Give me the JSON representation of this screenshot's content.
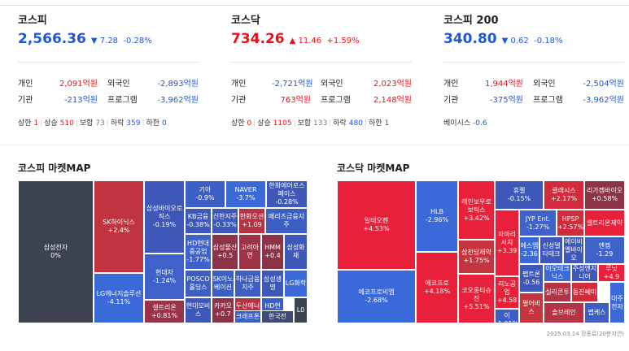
{
  "indices": [
    {
      "name": "코스피",
      "value": "2,566.36",
      "arrow": "▼",
      "change": "7.28",
      "rate": "-0.28%",
      "dir": "dn",
      "rows": [
        {
          "l1": "개인",
          "v1": "2,091억원",
          "c1": "up",
          "l2": "외국인",
          "v2": "-2,893억원",
          "c2": "dn"
        },
        {
          "l1": "기관",
          "v1": "-213억원",
          "c1": "dn",
          "l2": "프로그램",
          "v2": "-3,962억원",
          "c2": "dn"
        }
      ],
      "stats": [
        {
          "label": "상한",
          "value": "1",
          "c": "up"
        },
        {
          "label": "상승",
          "value": "510",
          "c": "up"
        },
        {
          "label": "보합",
          "value": "73",
          "c": "gray"
        },
        {
          "label": "하락",
          "value": "359",
          "c": "dn"
        },
        {
          "label": "하한",
          "value": "0",
          "c": "dn"
        }
      ]
    },
    {
      "name": "코스닥",
      "value": "734.26",
      "arrow": "▲",
      "change": "11.46",
      "rate": "+1.59%",
      "dir": "up",
      "rows": [
        {
          "l1": "개인",
          "v1": "-2,721억원",
          "c1": "dn",
          "l2": "외국인",
          "v2": "2,023억원",
          "c2": "up"
        },
        {
          "l1": "기관",
          "v1": "763억원",
          "c1": "up",
          "l2": "프로그램",
          "v2": "2,148억원",
          "c2": "up"
        }
      ],
      "stats": [
        {
          "label": "상한",
          "value": "0",
          "c": "up"
        },
        {
          "label": "상승",
          "value": "1105",
          "c": "up"
        },
        {
          "label": "보합",
          "value": "133",
          "c": "gray"
        },
        {
          "label": "하락",
          "value": "480",
          "c": "dn"
        },
        {
          "label": "하한",
          "value": "1",
          "c": "dn"
        }
      ]
    },
    {
      "name": "코스피 200",
      "value": "340.80",
      "arrow": "▼",
      "change": "0.62",
      "rate": "-0.18%",
      "dir": "dn",
      "rows": [
        {
          "l1": "개인",
          "v1": "1,944억원",
          "c1": "up",
          "l2": "외국인",
          "v2": "-2,504억원",
          "c2": "dn"
        },
        {
          "l1": "기관",
          "v1": "-375억원",
          "c1": "dn",
          "l2": "프로그램",
          "v2": "-3,962억원",
          "c2": "dn"
        }
      ],
      "basis": {
        "label": "베이시스",
        "value": "-0.6",
        "c": "dn"
      }
    }
  ],
  "kospi_map": {
    "title": "코스피 마켓MAP",
    "tiles": [
      {
        "name": "삼성전자",
        "rate": "0%",
        "color": "#3c4250"
      },
      {
        "name": "SK하이닉스",
        "rate": "+2.4%",
        "color": "#c0343f"
      },
      {
        "name": "LG에너지솔루션",
        "rate": "-4.11%",
        "color": "#3a6ad9"
      },
      {
        "name": "삼성바이오로직스",
        "rate": "-0.19%",
        "color": "#3d58b8"
      },
      {
        "name": "현대차",
        "rate": "-1.24%",
        "color": "#3e62c9"
      },
      {
        "name": "셀트리온",
        "rate": "+0.81%",
        "color": "#993348"
      },
      {
        "name": "기아",
        "rate": "-0.9%",
        "color": "#3d5fc5"
      },
      {
        "name": "NAVER",
        "rate": "-3.7%",
        "color": "#3b6ad8"
      },
      {
        "name": "한화에어로스페이스",
        "rate": "-0.28%",
        "color": "#3d58b8"
      },
      {
        "name": "KB금융",
        "rate": "-0.38%",
        "color": "#3d58b8"
      },
      {
        "name": "신한지주",
        "rate": "-0.33%",
        "color": "#3d58b8"
      },
      {
        "name": "한화오션",
        "rate": "+1.09",
        "color": "#b33545"
      },
      {
        "name": "메리츠금융지주",
        "rate": "",
        "color": "#3e5fc2"
      },
      {
        "name": "HD현대중공업",
        "rate": "-1.77%",
        "color": "#3e62c9"
      },
      {
        "name": "삼성물산",
        "rate": "+0.5",
        "color": "#8c3347"
      },
      {
        "name": "고려아연",
        "rate": "",
        "color": "#9c3448"
      },
      {
        "name": "HMM",
        "rate": "+0.4",
        "color": "#8c3347"
      },
      {
        "name": "삼성화재",
        "rate": "",
        "color": "#3d58b8"
      },
      {
        "name": "POSCO홀딩스",
        "rate": "",
        "color": "#3e5fc2"
      },
      {
        "name": "SK이노베이션",
        "rate": "",
        "color": "#3d5fc5"
      },
      {
        "name": "하나금융지주",
        "rate": "",
        "color": "#3e5fc2"
      },
      {
        "name": "삼성생명",
        "rate": "",
        "color": "#3d58b8"
      },
      {
        "name": "LG화학",
        "rate": "",
        "color": "#3b6ad8"
      },
      {
        "name": "두산에너빌리티",
        "rate": "",
        "color": "#b33545"
      },
      {
        "name": "HD현대",
        "rate": "",
        "color": "#3e5fc2"
      },
      {
        "name": "현대모비스",
        "rate": "",
        "color": "#3d58b8"
      },
      {
        "name": "카카오",
        "rate": "+0.7",
        "color": "#8c3347"
      },
      {
        "name": "크래프톤",
        "rate": "",
        "color": "#3e5fc2"
      },
      {
        "name": "한국전",
        "rate": "",
        "color": "#3d4a78"
      },
      {
        "name": "L0",
        "rate": "",
        "color": "#3c4250"
      }
    ]
  },
  "kosdaq_map": {
    "title": "코스닥 마켓MAP",
    "tiles": [
      {
        "name": "알테오젠",
        "rate": "+4.53%",
        "color": "#e8203a"
      },
      {
        "name": "에코프로비엠",
        "rate": "-2.68%",
        "color": "#3a6ad9"
      },
      {
        "name": "HLB",
        "rate": "-2.96%",
        "color": "#3a6ad9"
      },
      {
        "name": "에코프로",
        "rate": "+4.18%",
        "color": "#e8203a"
      },
      {
        "name": "레인보우로보틱스",
        "rate": "+3.42%",
        "color": "#e8203a"
      },
      {
        "name": "삼천당제약",
        "rate": "+1.75%",
        "color": "#c43540"
      },
      {
        "name": "코오롱티슈진",
        "rate": "+5.51%",
        "color": "#e8203a"
      },
      {
        "name": "휴젤",
        "rate": "-0.15%",
        "color": "#3d58b8"
      },
      {
        "name": "클래시스",
        "rate": "+2.17%",
        "color": "#d22c3c"
      },
      {
        "name": "리가켐바이오",
        "rate": "+0.58%",
        "color": "#8c3347"
      },
      {
        "name": "파마리서치",
        "rate": "+3.39",
        "color": "#e8203a"
      },
      {
        "name": "JYP Ent.",
        "rate": "-1.27%",
        "color": "#3e62c9"
      },
      {
        "name": "HPSP",
        "rate": "+2.57%",
        "color": "#d22c3c"
      },
      {
        "name": "셀트리온제약",
        "rate": "",
        "color": "#e8203a"
      },
      {
        "name": "에스엠",
        "rate": "-2.36",
        "color": "#3a6ad9"
      },
      {
        "name": "신성델타테크",
        "rate": "",
        "color": "#3d58b8"
      },
      {
        "name": "에이비엘바이오",
        "rate": "",
        "color": "#3d58b8"
      },
      {
        "name": "엔켐",
        "rate": "-1.29",
        "color": "#3e62c9"
      },
      {
        "name": "리노공업",
        "rate": "+4.58",
        "color": "#e8203a"
      },
      {
        "name": "펩트론",
        "rate": "-0.56",
        "color": "#3d58b8"
      },
      {
        "name": "이오테크닉스",
        "rate": "",
        "color": "#3b6ad8"
      },
      {
        "name": "주성엔지니어",
        "rate": "",
        "color": "#3d58b8"
      },
      {
        "name": "루닛",
        "rate": "+4.9",
        "color": "#e8203a"
      },
      {
        "name": "보로노이",
        "rate": "-1.01%",
        "color": "#3d5fc5"
      },
      {
        "name": "펄어비스",
        "rate": "",
        "color": "#c43540"
      },
      {
        "name": "실리콘투",
        "rate": "",
        "color": "#b33545"
      },
      {
        "name": "동진쎄미",
        "rate": "",
        "color": "#d22c3c"
      },
      {
        "name": "솔브레인",
        "rate": "",
        "color": "#b33545"
      },
      {
        "name": "펩케스",
        "rate": "",
        "color": "#3e5fc2"
      },
      {
        "name": "대주전자",
        "rate": "",
        "color": "#3b6ad8"
      }
    ]
  },
  "footer": "2025.03.14 장종료(20분지연)"
}
